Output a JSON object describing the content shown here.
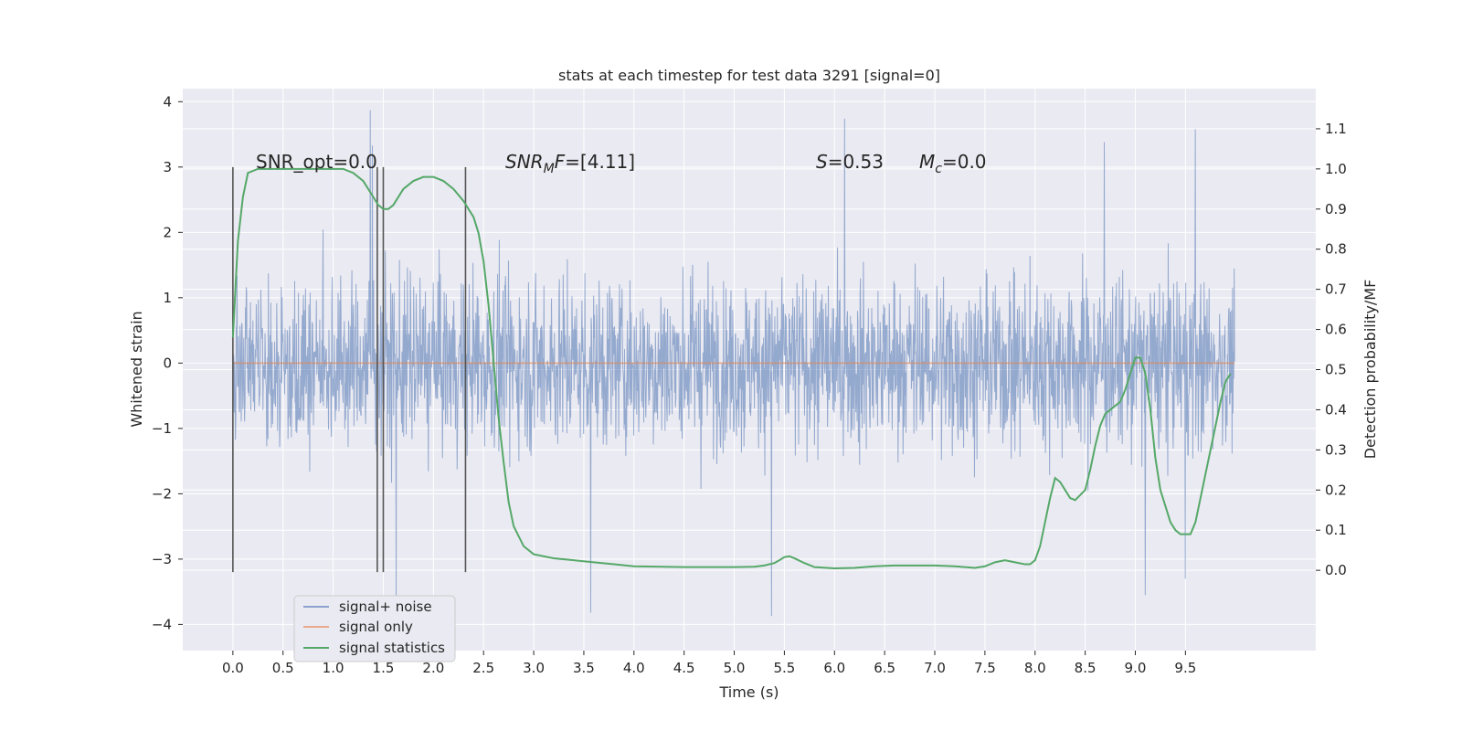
{
  "chart_data": {
    "type": "line",
    "title": "stats at each timestep for test data 3291 [signal=0]",
    "xlabel": "Time (s)",
    "ylabel": "Whitened strain",
    "y2label": "Detection probability/MF",
    "xlim": [
      -0.5,
      10.8
    ],
    "ylim": [
      -4.4,
      4.2
    ],
    "y2lim": [
      -0.2,
      1.2
    ],
    "x_ticks": [
      0.0,
      0.5,
      1.0,
      1.5,
      2.0,
      2.5,
      3.0,
      3.5,
      4.0,
      4.5,
      5.0,
      5.5,
      6.0,
      6.5,
      7.0,
      7.5,
      8.0,
      8.5,
      9.0,
      9.5
    ],
    "x_tick_labels": [
      "0.0",
      "0.5",
      "1.0",
      "1.5",
      "2.0",
      "2.5",
      "3.0",
      "3.5",
      "4.0",
      "4.5",
      "5.0",
      "5.5",
      "6.0",
      "6.5",
      "7.0",
      "7.5",
      "8.0",
      "8.5",
      "9.0",
      "9.5"
    ],
    "y_ticks": [
      4,
      3,
      2,
      1,
      0,
      -1,
      -2,
      -3,
      -4
    ],
    "y_tick_labels": [
      "4",
      "3",
      "2",
      "1",
      "0",
      "−1",
      "−2",
      "−3",
      "−4"
    ],
    "y2_ticks": [
      1.1,
      1.0,
      0.9,
      0.8,
      0.7,
      0.6,
      0.5,
      0.4,
      0.3,
      0.2,
      0.1,
      0.0
    ],
    "y2_tick_labels": [
      "1.1",
      "1.0",
      "0.9",
      "0.8",
      "0.7",
      "0.6",
      "0.5",
      "0.4",
      "0.3",
      "0.2",
      "0.1",
      "0.0"
    ],
    "grid": true,
    "legend_position": "lower-left",
    "legend": [
      "signal+ noise",
      "signal only",
      "signal statistics"
    ],
    "colors": {
      "background": "#eaeaf2",
      "grid": "#ffffff",
      "noise": "#4c72b0",
      "signal": "#dd8452",
      "stats": "#55a868",
      "vline": "#555555"
    },
    "noise_series": {
      "name": "signal+ noise",
      "x_range": [
        0.0,
        9.99
      ],
      "typical_amplitude": 1.6,
      "peaks": [
        {
          "x": 1.37,
          "y": 3.87
        },
        {
          "x": 1.39,
          "y": 3.33
        },
        {
          "x": 1.63,
          "y": -3.6
        },
        {
          "x": 3.57,
          "y": -3.82
        },
        {
          "x": 5.37,
          "y": -3.87
        },
        {
          "x": 6.1,
          "y": 3.74
        },
        {
          "x": 8.69,
          "y": 3.38
        },
        {
          "x": 9.1,
          "y": -3.55
        },
        {
          "x": 9.6,
          "y": 3.58
        },
        {
          "x": 9.5,
          "y": -3.3
        }
      ]
    },
    "signal_series": {
      "name": "signal only",
      "x": [
        0.0,
        9.99
      ],
      "y": [
        0.0,
        0.0
      ]
    },
    "stats_series": {
      "name": "signal statistics",
      "x": [
        0.0,
        0.05,
        0.1,
        0.15,
        0.25,
        0.4,
        0.6,
        0.8,
        1.0,
        1.1,
        1.2,
        1.3,
        1.4,
        1.45,
        1.5,
        1.55,
        1.6,
        1.7,
        1.8,
        1.9,
        2.0,
        2.1,
        2.2,
        2.3,
        2.4,
        2.45,
        2.5,
        2.55,
        2.6,
        2.65,
        2.7,
        2.75,
        2.8,
        2.9,
        3.0,
        3.2,
        3.4,
        3.6,
        3.8,
        4.0,
        4.5,
        5.0,
        5.2,
        5.3,
        5.4,
        5.45,
        5.5,
        5.55,
        5.6,
        5.7,
        5.8,
        6.0,
        6.2,
        6.4,
        6.6,
        6.8,
        7.0,
        7.2,
        7.4,
        7.5,
        7.6,
        7.7,
        7.8,
        7.9,
        7.95,
        8.0,
        8.05,
        8.1,
        8.15,
        8.2,
        8.25,
        8.3,
        8.35,
        8.4,
        8.5,
        8.55,
        8.6,
        8.65,
        8.7,
        8.75,
        8.8,
        8.85,
        8.9,
        8.95,
        9.0,
        9.05,
        9.1,
        9.15,
        9.2,
        9.25,
        9.3,
        9.35,
        9.4,
        9.45,
        9.5,
        9.55,
        9.6,
        9.65,
        9.7,
        9.75,
        9.8,
        9.85,
        9.9,
        9.95
      ],
      "y": [
        0.58,
        0.82,
        0.93,
        0.99,
        1.0,
        1.0,
        1.0,
        1.0,
        1.0,
        1.0,
        0.99,
        0.97,
        0.93,
        0.91,
        0.9,
        0.9,
        0.91,
        0.95,
        0.97,
        0.98,
        0.98,
        0.97,
        0.95,
        0.92,
        0.88,
        0.84,
        0.77,
        0.66,
        0.52,
        0.38,
        0.27,
        0.17,
        0.11,
        0.06,
        0.04,
        0.03,
        0.025,
        0.02,
        0.015,
        0.01,
        0.008,
        0.008,
        0.009,
        0.012,
        0.018,
        0.025,
        0.033,
        0.035,
        0.03,
        0.018,
        0.008,
        0.005,
        0.006,
        0.01,
        0.012,
        0.012,
        0.012,
        0.01,
        0.006,
        0.01,
        0.02,
        0.025,
        0.02,
        0.015,
        0.015,
        0.025,
        0.06,
        0.12,
        0.18,
        0.23,
        0.22,
        0.2,
        0.18,
        0.175,
        0.2,
        0.25,
        0.31,
        0.36,
        0.39,
        0.4,
        0.41,
        0.42,
        0.45,
        0.49,
        0.53,
        0.53,
        0.49,
        0.4,
        0.28,
        0.2,
        0.16,
        0.12,
        0.1,
        0.09,
        0.09,
        0.09,
        0.12,
        0.18,
        0.24,
        0.3,
        0.36,
        0.42,
        0.47,
        0.49
      ]
    },
    "vertical_lines": [
      {
        "x": 0.0,
        "y": [
          -3.2,
          3.0
        ]
      },
      {
        "x": 1.44,
        "y": [
          -3.2,
          3.0
        ]
      },
      {
        "x": 1.5,
        "y": [
          -3.2,
          3.0
        ]
      },
      {
        "x": 2.32,
        "y": [
          -3.2,
          3.0
        ]
      }
    ],
    "annotations": [
      {
        "x": 0.2,
        "y": 3.1,
        "text": "SNR_opt=0.0"
      },
      {
        "x": 2.6,
        "y": 3.1,
        "text": "SNR_MF=[4.11]"
      },
      {
        "x": 5.6,
        "y": 3.1,
        "text": "S=0.53"
      },
      {
        "x": 6.6,
        "y": 3.1,
        "text": "M_c=0.0"
      }
    ]
  }
}
